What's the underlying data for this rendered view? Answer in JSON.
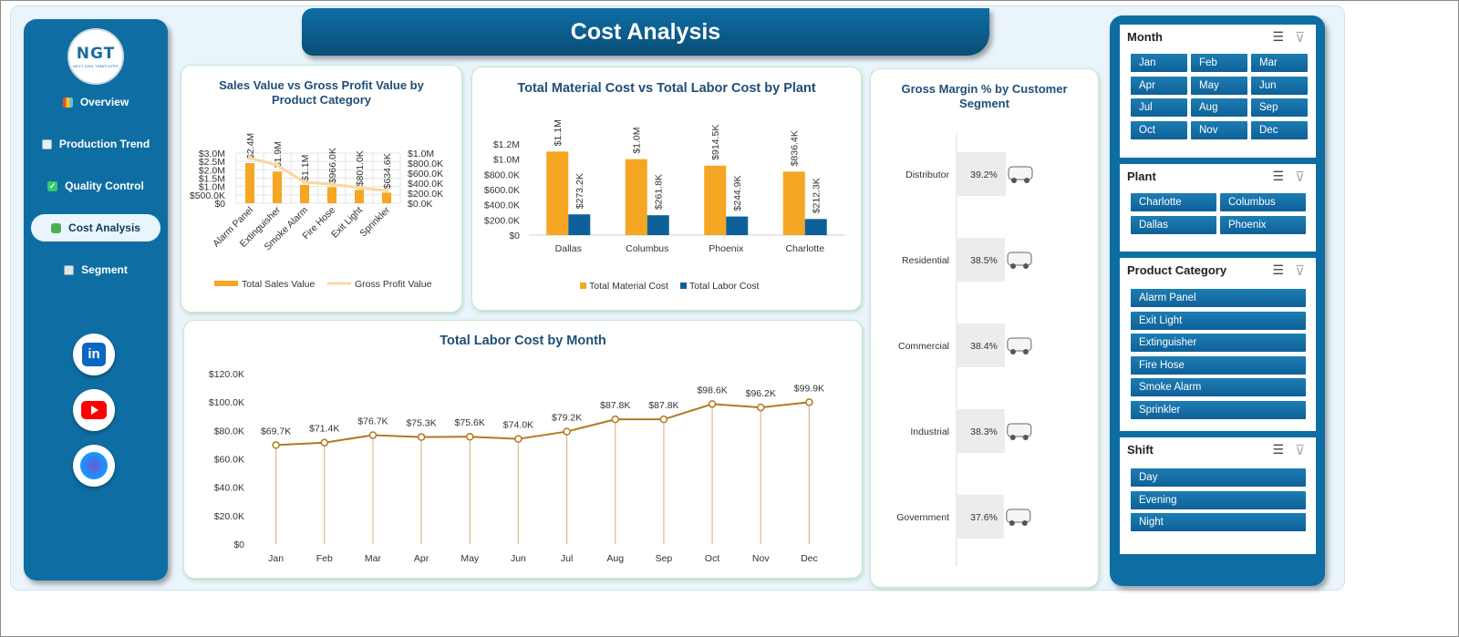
{
  "title": "Cost Analysis",
  "logo": {
    "mark": "NGT",
    "sub": "NEXT GEN TEMPLATES"
  },
  "nav": [
    {
      "label": "Overview",
      "icon": "bar-chart-icon",
      "active": false
    },
    {
      "label": "Production Trend",
      "icon": "trend-chart-icon",
      "active": false
    },
    {
      "label": "Quality Control",
      "icon": "checkmark-icon",
      "active": false
    },
    {
      "label": "Cost Analysis",
      "icon": "money-icon",
      "active": true
    },
    {
      "label": "Segment",
      "icon": "clipboard-icon",
      "active": false
    }
  ],
  "social": [
    {
      "icon": "linkedin-icon"
    },
    {
      "icon": "youtube-icon"
    },
    {
      "icon": "globe-icon"
    }
  ],
  "colors": {
    "primary": "#0e6ea3",
    "orange": "#f5a623",
    "blue_bar": "#0e6198",
    "line_brown": "#b07a1f",
    "light_line": "#f7d9a0"
  },
  "chart_data": [
    {
      "type": "bar",
      "title": "Sales Value vs Gross Profit Value by Product Category",
      "categories": [
        "Alarm Panel",
        "Extinguisher",
        "Smoke Alarm",
        "Fire Hose",
        "Exit Light",
        "Sprinkler"
      ],
      "series": [
        {
          "name": "Total Sales Value",
          "values": [
            2400000,
            1900000,
            1100000,
            966000,
            801000,
            634600
          ],
          "labels": [
            "$2.4M",
            "$1.9M",
            "$1.1M",
            "$966.0K",
            "$801.0K",
            "$634.6K"
          ]
        },
        {
          "name": "Gross Profit Value",
          "values": [
            900000,
            760000,
            420000,
            380000,
            310000,
            250000
          ]
        }
      ],
      "y_ticks_left": [
        "$3.0M",
        "$2.5M",
        "$2.0M",
        "$1.5M",
        "$1.0M",
        "$500.0K",
        "$0"
      ],
      "y_ticks_right": [
        "$1.0M",
        "$800.0K",
        "$600.0K",
        "$400.0K",
        "$200.0K",
        "$0.0K"
      ],
      "ylim": [
        0,
        3000000
      ],
      "ylim_right": [
        0,
        1000000
      ],
      "legend": "bottom",
      "grid": true
    },
    {
      "type": "bar",
      "title": "Total Material Cost vs Total Labor Cost by Plant",
      "categories": [
        "Dallas",
        "Columbus",
        "Phoenix",
        "Charlotte"
      ],
      "series": [
        {
          "name": "Total Material Cost",
          "values": [
            1100000,
            1000000,
            914500,
            836400
          ],
          "labels": [
            "$1.1M",
            "$1.0M",
            "$914.5K",
            "$836.4K"
          ]
        },
        {
          "name": "Total Labor Cost",
          "values": [
            273200,
            261800,
            244900,
            212300
          ],
          "labels": [
            "$273.2K",
            "$261.8K",
            "$244.9K",
            "$212.3K"
          ]
        }
      ],
      "y_ticks": [
        "$1.2M",
        "$1.0M",
        "$800.0K",
        "$600.0K",
        "$400.0K",
        "$200.0K",
        "$0"
      ],
      "ylim": [
        0,
        1200000
      ],
      "legend": "bottom",
      "grid": false
    },
    {
      "type": "line",
      "title": "Total Labor Cost by Month",
      "categories": [
        "Jan",
        "Feb",
        "Mar",
        "Apr",
        "May",
        "Jun",
        "Jul",
        "Aug",
        "Sep",
        "Oct",
        "Nov",
        "Dec"
      ],
      "values": [
        69700,
        71400,
        76700,
        75300,
        75600,
        74000,
        79200,
        87800,
        87800,
        98600,
        96200,
        99900
      ],
      "labels": [
        "$69.7K",
        "$71.4K",
        "$76.7K",
        "$75.3K",
        "$75.6K",
        "$74.0K",
        "$79.2K",
        "$87.8K",
        "$87.8K",
        "$98.6K",
        "$96.2K",
        "$99.9K"
      ],
      "y_ticks": [
        "$120.0K",
        "$100.0K",
        "$80.0K",
        "$60.0K",
        "$40.0K",
        "$20.0K",
        "$0"
      ],
      "ylim": [
        0,
        120000
      ],
      "grid": false
    },
    {
      "type": "bar",
      "title": "Gross Margin % by Customer Segment",
      "categories": [
        "Distributor",
        "Residential",
        "Commercial",
        "Industrial",
        "Government"
      ],
      "values": [
        39.2,
        38.5,
        38.4,
        38.3,
        37.6
      ],
      "labels": [
        "39.2%",
        "38.5%",
        "38.4%",
        "38.3%",
        "37.6%"
      ],
      "marker_icon": "car-icon"
    }
  ],
  "slicers": [
    {
      "title": "Month",
      "items": [
        "Jan",
        "Feb",
        "Mar",
        "Apr",
        "May",
        "Jun",
        "Jul",
        "Aug",
        "Sep",
        "Oct",
        "Nov",
        "Dec"
      ]
    },
    {
      "title": "Plant",
      "items": [
        "Charlotte",
        "Columbus",
        "Dallas",
        "Phoenix"
      ]
    },
    {
      "title": "Product Category",
      "items": [
        "Alarm Panel",
        "Exit Light",
        "Extinguisher",
        "Fire Hose",
        "Smoke Alarm",
        "Sprinkler"
      ]
    },
    {
      "title": "Shift",
      "items": [
        "Day",
        "Evening",
        "Night"
      ]
    }
  ]
}
